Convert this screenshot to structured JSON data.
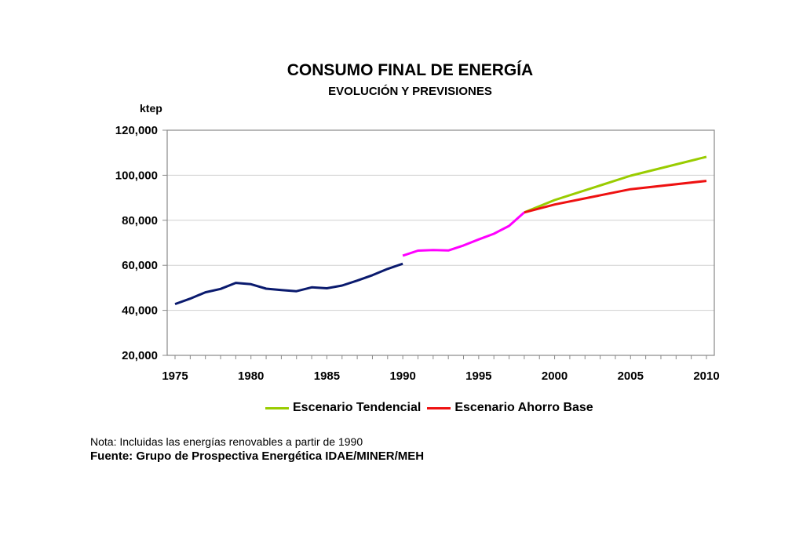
{
  "chart_data": {
    "type": "line",
    "title": "CONSUMO FINAL DE ENERGÍA",
    "subtitle": "EVOLUCIÓN Y PREVISIONES",
    "ylabel": "ktep",
    "xlabel": "",
    "xlim": [
      1975,
      2010
    ],
    "ylim": [
      20000,
      120000
    ],
    "x_ticks": [
      "1975",
      "1980",
      "1985",
      "1990",
      "1995",
      "2000",
      "2005",
      "2010"
    ],
    "y_ticks": [
      "20,000",
      "40,000",
      "60,000",
      "80,000",
      "100,000",
      "120,000"
    ],
    "grid": "horizontal",
    "legend_position": "bottom",
    "series": [
      {
        "color": "#0a1a6e",
        "points": [
          [
            1975,
            42800
          ],
          [
            1976,
            45200
          ],
          [
            1977,
            48000
          ],
          [
            1978,
            49500
          ],
          [
            1979,
            52200
          ],
          [
            1980,
            51600
          ],
          [
            1981,
            49600
          ],
          [
            1982,
            49000
          ],
          [
            1983,
            48500
          ],
          [
            1984,
            50200
          ],
          [
            1985,
            49800
          ],
          [
            1986,
            51000
          ],
          [
            1987,
            53200
          ],
          [
            1988,
            55600
          ],
          [
            1989,
            58400
          ],
          [
            1990,
            60700
          ]
        ]
      },
      {
        "color": "#ff00ff",
        "points": [
          [
            1990,
            64300
          ],
          [
            1991,
            66500
          ],
          [
            1992,
            66800
          ],
          [
            1993,
            66600
          ],
          [
            1994,
            68800
          ],
          [
            1995,
            71500
          ],
          [
            1996,
            74000
          ],
          [
            1997,
            77500
          ],
          [
            1998,
            83500
          ]
        ]
      },
      {
        "name": "Escenario Tendencial",
        "color": "#99cc00",
        "points": [
          [
            1998,
            83500
          ],
          [
            2000,
            89000
          ],
          [
            2005,
            99800
          ],
          [
            2010,
            108200
          ]
        ]
      },
      {
        "name": "Escenario Ahorro Base",
        "color": "#ee1111",
        "points": [
          [
            1998,
            83500
          ],
          [
            2000,
            87000
          ],
          [
            2005,
            93800
          ],
          [
            2010,
            97500
          ]
        ]
      }
    ]
  },
  "legend": {
    "items": [
      {
        "label": "Escenario Tendencial",
        "color": "#99cc00"
      },
      {
        "label": "Escenario Ahorro Base",
        "color": "#ee1111"
      }
    ]
  },
  "footer": {
    "note": "Nota: Incluidas las energías renovables a partir de 1990",
    "source": "Fuente: Grupo de Prospectiva Energética IDAE/MINER/MEH"
  }
}
